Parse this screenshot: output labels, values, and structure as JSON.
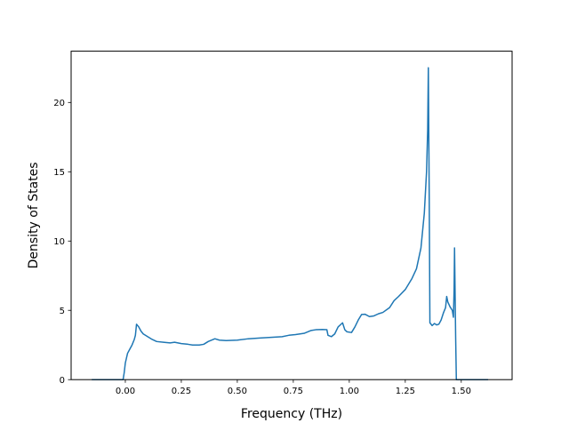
{
  "chart_data": {
    "type": "line",
    "title": "",
    "xlabel": "Frequency (THz)",
    "ylabel": "Density of States",
    "xlim": [
      -0.242,
      1.727
    ],
    "ylim": [
      0,
      23.7
    ],
    "grid": false,
    "legend": "none",
    "xticks": [
      {
        "value": 0.0,
        "label": "0.00"
      },
      {
        "value": 0.25,
        "label": "0.25"
      },
      {
        "value": 0.5,
        "label": "0.50"
      },
      {
        "value": 0.75,
        "label": "0.75"
      },
      {
        "value": 1.0,
        "label": "1.00"
      },
      {
        "value": 1.25,
        "label": "1.25"
      },
      {
        "value": 1.5,
        "label": "1.50"
      }
    ],
    "yticks": [
      {
        "value": 0,
        "label": "0"
      },
      {
        "value": 5,
        "label": "5"
      },
      {
        "value": 10,
        "label": "10"
      },
      {
        "value": 15,
        "label": "15"
      },
      {
        "value": 20,
        "label": "20"
      }
    ],
    "series": [
      {
        "color": "#1f77b4",
        "points": [
          [
            -0.15,
            0.0
          ],
          [
            -0.01,
            0.0
          ],
          [
            -0.005,
            0.5
          ],
          [
            0.0,
            1.2
          ],
          [
            0.01,
            1.9
          ],
          [
            0.02,
            2.2
          ],
          [
            0.03,
            2.5
          ],
          [
            0.04,
            2.9
          ],
          [
            0.045,
            3.2
          ],
          [
            0.05,
            4.0
          ],
          [
            0.06,
            3.8
          ],
          [
            0.07,
            3.5
          ],
          [
            0.08,
            3.3
          ],
          [
            0.1,
            3.1
          ],
          [
            0.12,
            2.9
          ],
          [
            0.14,
            2.75
          ],
          [
            0.17,
            2.7
          ],
          [
            0.2,
            2.65
          ],
          [
            0.22,
            2.7
          ],
          [
            0.25,
            2.6
          ],
          [
            0.28,
            2.55
          ],
          [
            0.3,
            2.5
          ],
          [
            0.33,
            2.5
          ],
          [
            0.35,
            2.55
          ],
          [
            0.37,
            2.75
          ],
          [
            0.4,
            2.95
          ],
          [
            0.42,
            2.85
          ],
          [
            0.45,
            2.82
          ],
          [
            0.5,
            2.85
          ],
          [
            0.55,
            2.95
          ],
          [
            0.6,
            3.0
          ],
          [
            0.65,
            3.05
          ],
          [
            0.7,
            3.1
          ],
          [
            0.73,
            3.2
          ],
          [
            0.76,
            3.25
          ],
          [
            0.8,
            3.35
          ],
          [
            0.83,
            3.55
          ],
          [
            0.85,
            3.6
          ],
          [
            0.88,
            3.62
          ],
          [
            0.9,
            3.6
          ],
          [
            0.905,
            3.2
          ],
          [
            0.92,
            3.1
          ],
          [
            0.935,
            3.3
          ],
          [
            0.95,
            3.8
          ],
          [
            0.97,
            4.1
          ],
          [
            0.98,
            3.6
          ],
          [
            0.99,
            3.45
          ],
          [
            1.01,
            3.4
          ],
          [
            1.025,
            3.8
          ],
          [
            1.04,
            4.3
          ],
          [
            1.055,
            4.7
          ],
          [
            1.07,
            4.72
          ],
          [
            1.09,
            4.55
          ],
          [
            1.11,
            4.6
          ],
          [
            1.13,
            4.75
          ],
          [
            1.15,
            4.85
          ],
          [
            1.18,
            5.2
          ],
          [
            1.2,
            5.7
          ],
          [
            1.22,
            6.0
          ],
          [
            1.25,
            6.5
          ],
          [
            1.28,
            7.3
          ],
          [
            1.3,
            8.0
          ],
          [
            1.32,
            9.5
          ],
          [
            1.335,
            12.0
          ],
          [
            1.345,
            15.0
          ],
          [
            1.35,
            18.0
          ],
          [
            1.353,
            22.5
          ],
          [
            1.357,
            13.0
          ],
          [
            1.36,
            4.1
          ],
          [
            1.37,
            3.9
          ],
          [
            1.38,
            4.05
          ],
          [
            1.39,
            3.95
          ],
          [
            1.4,
            4.0
          ],
          [
            1.41,
            4.3
          ],
          [
            1.42,
            4.8
          ],
          [
            1.43,
            5.2
          ],
          [
            1.435,
            6.0
          ],
          [
            1.44,
            5.6
          ],
          [
            1.45,
            5.25
          ],
          [
            1.46,
            5.0
          ],
          [
            1.465,
            4.5
          ],
          [
            1.468,
            6.5
          ],
          [
            1.47,
            9.5
          ],
          [
            1.475,
            3.0
          ],
          [
            1.478,
            0.0
          ],
          [
            1.62,
            0.0
          ]
        ]
      }
    ]
  }
}
